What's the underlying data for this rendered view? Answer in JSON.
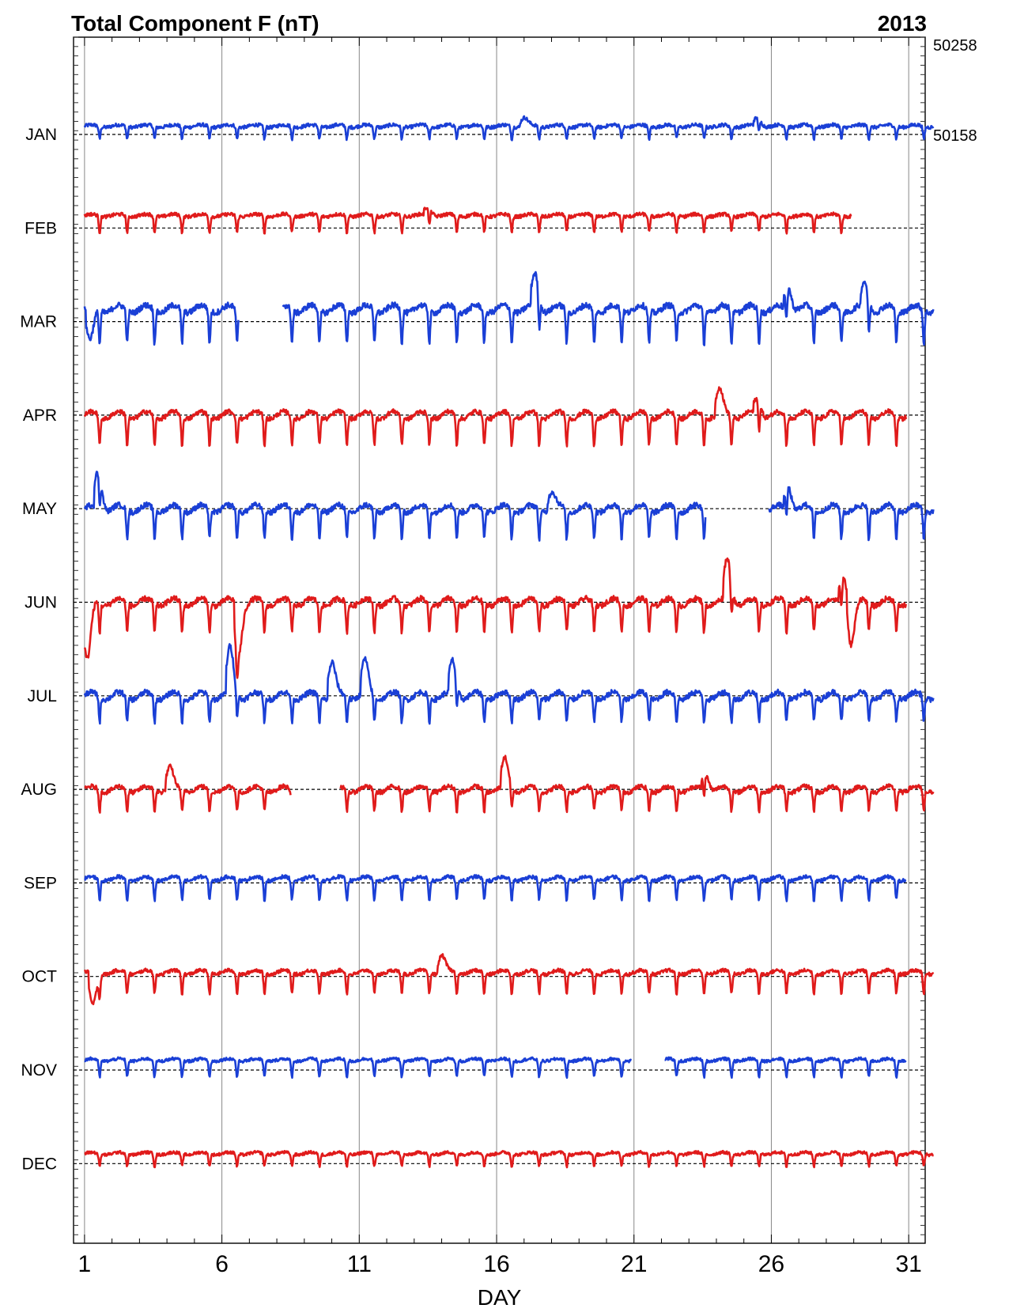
{
  "chart_data": {
    "type": "line",
    "title": "Total Component F (nT)",
    "year": "2013",
    "xlabel": "DAY",
    "x_ticks": [
      1,
      6,
      11,
      16,
      21,
      26,
      31
    ],
    "xlim": [
      0.6,
      31.6
    ],
    "scale_labels": [
      "50258",
      "50158"
    ],
    "series": [
      {
        "name": "JAN",
        "color": "#1a3fd6",
        "offset": 0.1,
        "amp": 0.05,
        "dips": 0.15,
        "noise": 0.12,
        "storms": [
          [
            17,
            0.1
          ],
          [
            25.5,
            0.1
          ]
        ],
        "gaps": [],
        "end": 31.9
      },
      {
        "name": "FEB",
        "color": "#e01b1b",
        "offset": 0.15,
        "amp": 0.05,
        "dips": 0.2,
        "noise": 0.12,
        "storms": [
          [
            13.5,
            0.1
          ]
        ],
        "gaps": [],
        "end": 28.9
      },
      {
        "name": "MAR",
        "color": "#1a3fd6",
        "offset": 0.15,
        "amp": 0.15,
        "dips": 0.4,
        "noise": 0.2,
        "storms": [
          [
            1.2,
            -0.4
          ],
          [
            17.4,
            0.4
          ],
          [
            26.6,
            0.3
          ],
          [
            29.4,
            0.3
          ]
        ],
        "gaps": [
          [
            6.6,
            8.2
          ]
        ],
        "end": 31.9
      },
      {
        "name": "APR",
        "color": "#e01b1b",
        "offset": 0.0,
        "amp": 0.15,
        "dips": 0.35,
        "noise": 0.15,
        "storms": [
          [
            24.1,
            0.3
          ],
          [
            25.5,
            0.2
          ]
        ],
        "gaps": [],
        "end": 30.9
      },
      {
        "name": "MAY",
        "color": "#1a3fd6",
        "offset": 0.0,
        "amp": 0.15,
        "dips": 0.35,
        "noise": 0.18,
        "storms": [
          [
            1.5,
            0.45
          ],
          [
            18,
            0.2
          ],
          [
            26.6,
            0.3
          ]
        ],
        "gaps": [
          [
            23.6,
            25.9
          ]
        ],
        "end": 31.9
      },
      {
        "name": "JUN",
        "color": "#e01b1b",
        "offset": 0.0,
        "amp": 0.15,
        "dips": 0.35,
        "noise": 0.18,
        "storms": [
          [
            1.1,
            -0.7
          ],
          [
            6.6,
            -0.6
          ],
          [
            24.4,
            0.5
          ],
          [
            28.6,
            0.35
          ],
          [
            28.9,
            -0.5
          ]
        ],
        "gaps": [],
        "end": 30.9
      },
      {
        "name": "JUL",
        "color": "#1a3fd6",
        "offset": 0.0,
        "amp": 0.15,
        "dips": 0.3,
        "noise": 0.18,
        "storms": [
          [
            6.3,
            0.55
          ],
          [
            10,
            0.4
          ],
          [
            11.2,
            0.4
          ],
          [
            14.4,
            0.4
          ]
        ],
        "gaps": [],
        "end": 31.9
      },
      {
        "name": "AUG",
        "color": "#e01b1b",
        "offset": 0.0,
        "amp": 0.12,
        "dips": 0.25,
        "noise": 0.15,
        "storms": [
          [
            4.1,
            0.25
          ],
          [
            16.3,
            0.35
          ],
          [
            23.6,
            0.2
          ]
        ],
        "gaps": [
          [
            8.5,
            10.3
          ]
        ],
        "end": 31.9
      },
      {
        "name": "SEP",
        "color": "#1a3fd6",
        "offset": 0.05,
        "amp": 0.08,
        "dips": 0.25,
        "noise": 0.12,
        "storms": [],
        "gaps": [],
        "end": 30.9
      },
      {
        "name": "OCT",
        "color": "#e01b1b",
        "offset": 0.05,
        "amp": 0.08,
        "dips": 0.25,
        "noise": 0.12,
        "storms": [
          [
            1.3,
            -0.4
          ],
          [
            14,
            0.2
          ]
        ],
        "gaps": [],
        "end": 31.9
      },
      {
        "name": "NOV",
        "color": "#1a3fd6",
        "offset": 0.12,
        "amp": 0.05,
        "dips": 0.2,
        "noise": 0.1,
        "storms": [],
        "gaps": [
          [
            20.9,
            22.1
          ]
        ],
        "end": 30.9
      },
      {
        "name": "DEC",
        "color": "#e01b1b",
        "offset": 0.12,
        "amp": 0.05,
        "dips": 0.15,
        "noise": 0.1,
        "storms": [],
        "gaps": [],
        "end": 31.9
      }
    ]
  }
}
